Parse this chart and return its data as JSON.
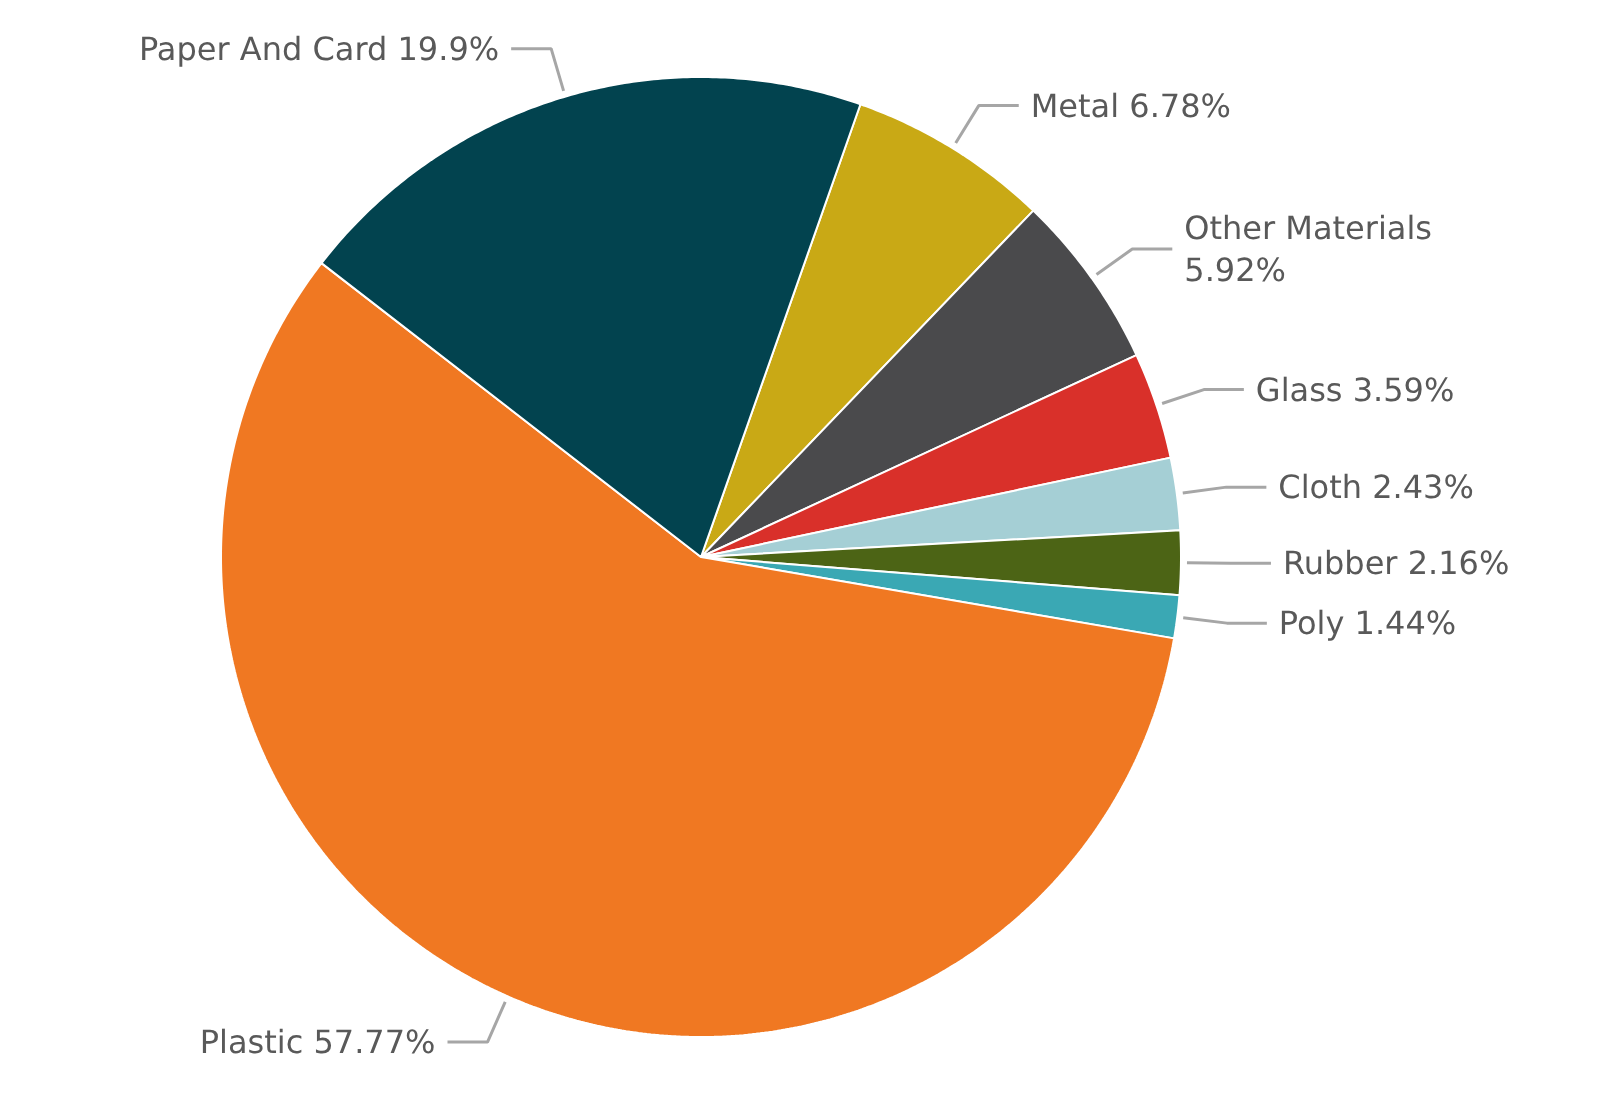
{
  "chart_data": {
    "type": "pie",
    "categories": [
      "Metal",
      "Other Materials",
      "Glass",
      "Cloth",
      "Rubber",
      "Poly",
      "Plastic",
      "Paper And Card"
    ],
    "values": [
      6.78,
      5.92,
      3.59,
      2.43,
      2.16,
      1.44,
      57.77,
      19.9
    ],
    "value_labels": [
      "6.78%",
      "5.92%",
      "3.59%",
      "2.43%",
      "2.16%",
      "1.44%",
      "57.77%",
      "19.9%"
    ],
    "colors": [
      "#c9a915",
      "#4a4a4c",
      "#d9302a",
      "#a5cfd5",
      "#4c6415",
      "#3aa8b4",
      "#f07822",
      "#02434f"
    ]
  }
}
